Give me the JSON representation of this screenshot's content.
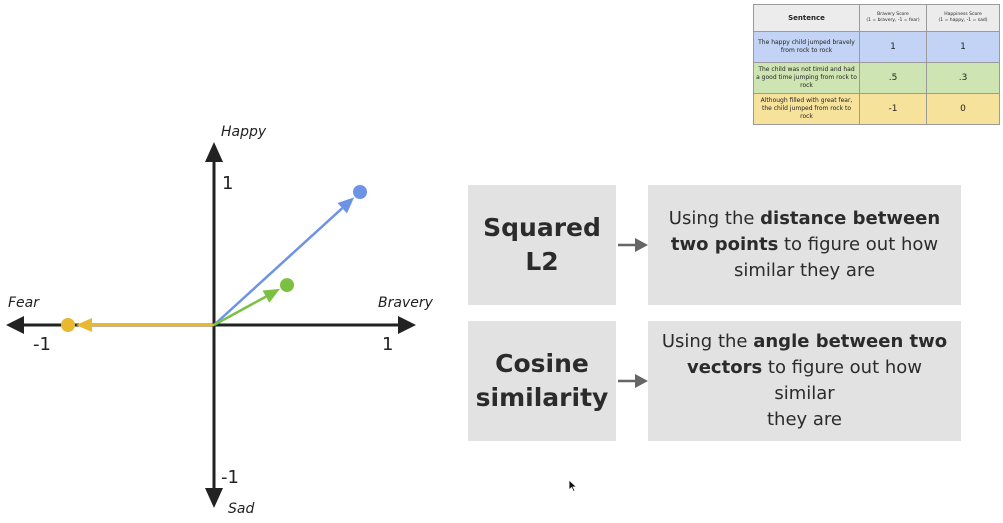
{
  "diagram": {
    "axes": {
      "top_label": "Happy",
      "bottom_label": "Sad",
      "left_label": "Fear",
      "right_label": "Bravery",
      "y_pos_tick": "1",
      "y_neg_tick": "-1",
      "x_neg_tick": "-1",
      "x_pos_tick": "1"
    },
    "vectors": [
      {
        "name": "blue-vector",
        "color": "#6d93e6",
        "bravery": 1,
        "happiness": 1
      },
      {
        "name": "green-vector",
        "color": "#7ac142",
        "bravery": 0.5,
        "happiness": 0.3
      },
      {
        "name": "yellow-vector",
        "color": "#e8b92e",
        "bravery": -1,
        "happiness": 0
      }
    ]
  },
  "methods": {
    "l2": {
      "title_line1": "Squared",
      "title_line2": "L2",
      "desc_pre": "Using the ",
      "desc_bold1": "distance between",
      "desc_bold2": "two points",
      "desc_post": " to figure out how",
      "desc_line3": "similar they are"
    },
    "cosine": {
      "title_line1": "Cosine",
      "title_line2": "similarity",
      "desc_pre": "Using the ",
      "desc_bold1": "angle between two",
      "desc_bold2": "vectors",
      "desc_post": " to figure out how similar",
      "desc_line3": "they are"
    }
  },
  "table": {
    "headers": {
      "sentence": "Sentence",
      "bravery_title": "Bravery Score",
      "bravery_sub": "(1 = bravery, -1 = fear)",
      "happiness_title": "Happiness Score",
      "happiness_sub": "(1 = happy, -1 = sad)"
    },
    "rows": [
      {
        "sentence": "The happy child jumped bravely from rock to rock",
        "bravery": "1",
        "happiness": "1"
      },
      {
        "sentence": "The child was not timid and had a good time jumping from rock to rock",
        "bravery": ".5",
        "happiness": ".3"
      },
      {
        "sentence": "Although filled with great fear, the child jumped from rock to rock",
        "bravery": "-1",
        "happiness": "0"
      }
    ]
  },
  "colors": {
    "axis": "#222222",
    "box": "#e2e2e2",
    "arrow": "#666666",
    "row_blue": "#c3d3f5",
    "row_green": "#cfe4b3",
    "row_yellow": "#f6e29b"
  }
}
